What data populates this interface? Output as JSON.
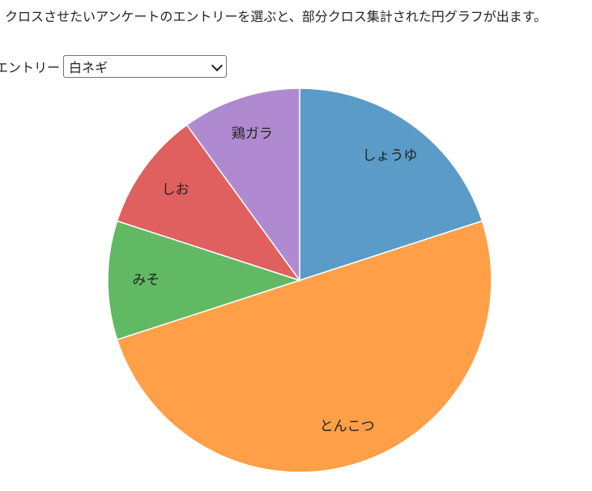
{
  "description": "クロスさせたいアンケートのエントリーを選ぶと、部分クロス集計された円グラフが出ます。",
  "entry": {
    "label": "エントリー",
    "selected": "白ネギ"
  },
  "chart_data": {
    "type": "pie",
    "categories": [
      "しょうゆ",
      "とんこつ",
      "みそ",
      "しお",
      "鶏ガラ"
    ],
    "values": [
      20,
      50,
      10,
      10,
      10
    ],
    "colors": [
      "#5a9bc8",
      "#ff9f47",
      "#61b963",
      "#e05f5f",
      "#b08ad0"
    ]
  }
}
